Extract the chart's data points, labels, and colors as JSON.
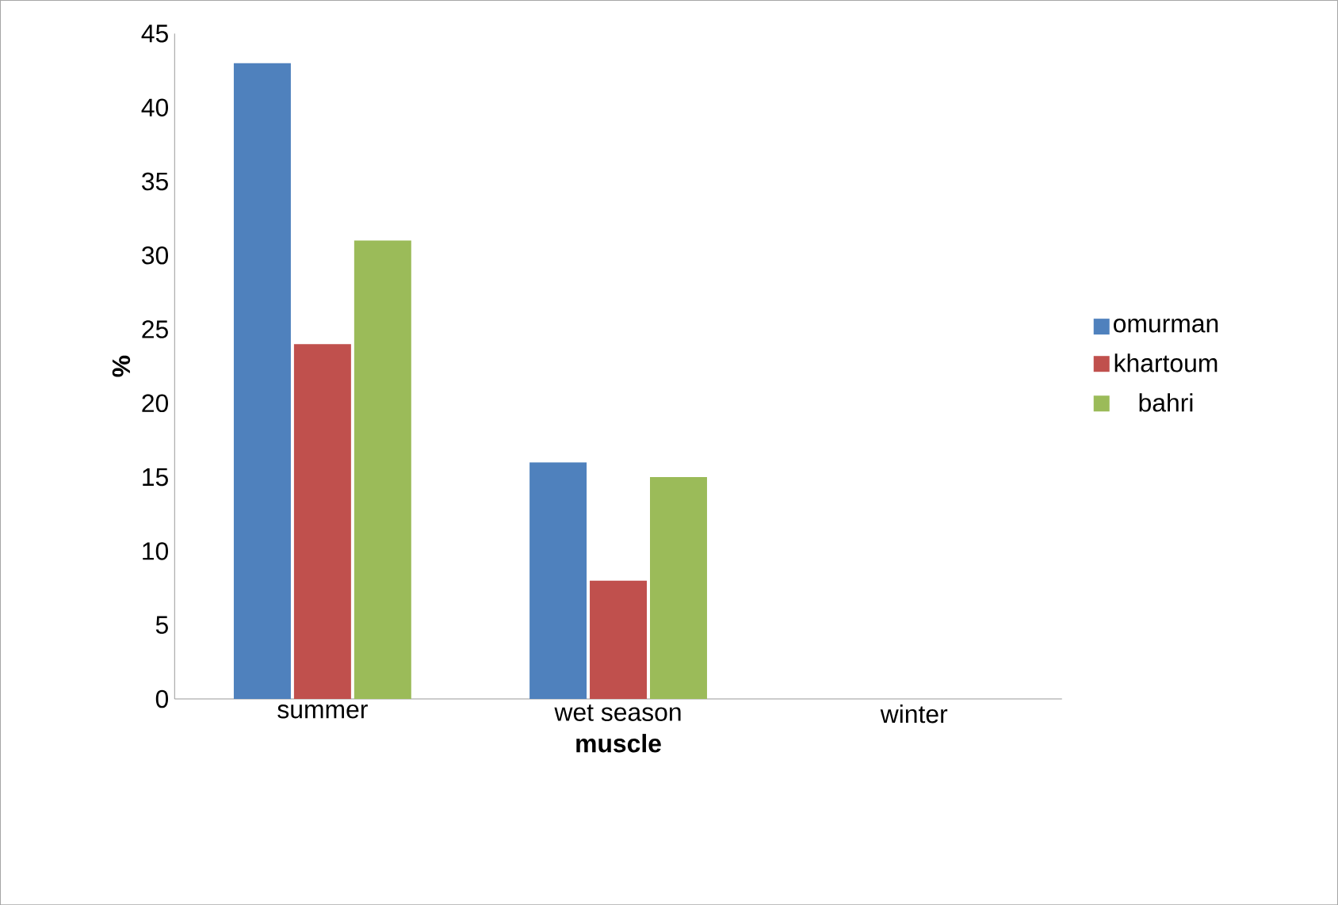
{
  "chart_data": {
    "type": "bar",
    "xlabel": "muscle",
    "ylabel": "%",
    "categories": [
      "summer",
      "wet season",
      "winter"
    ],
    "series": [
      {
        "name": "omurman",
        "color": "#4f81bd",
        "values": [
          43,
          16,
          0
        ]
      },
      {
        "name": "khartoum",
        "color": "#c0504d",
        "values": [
          24,
          8,
          0
        ]
      },
      {
        "name": "bahri",
        "color": "#9bbb59",
        "values": [
          31,
          15,
          0
        ]
      }
    ],
    "ylim": [
      0,
      45
    ],
    "yticks": [
      0,
      5,
      10,
      15,
      20,
      25,
      30,
      35,
      40,
      45
    ],
    "grid": false,
    "legend": "right"
  }
}
